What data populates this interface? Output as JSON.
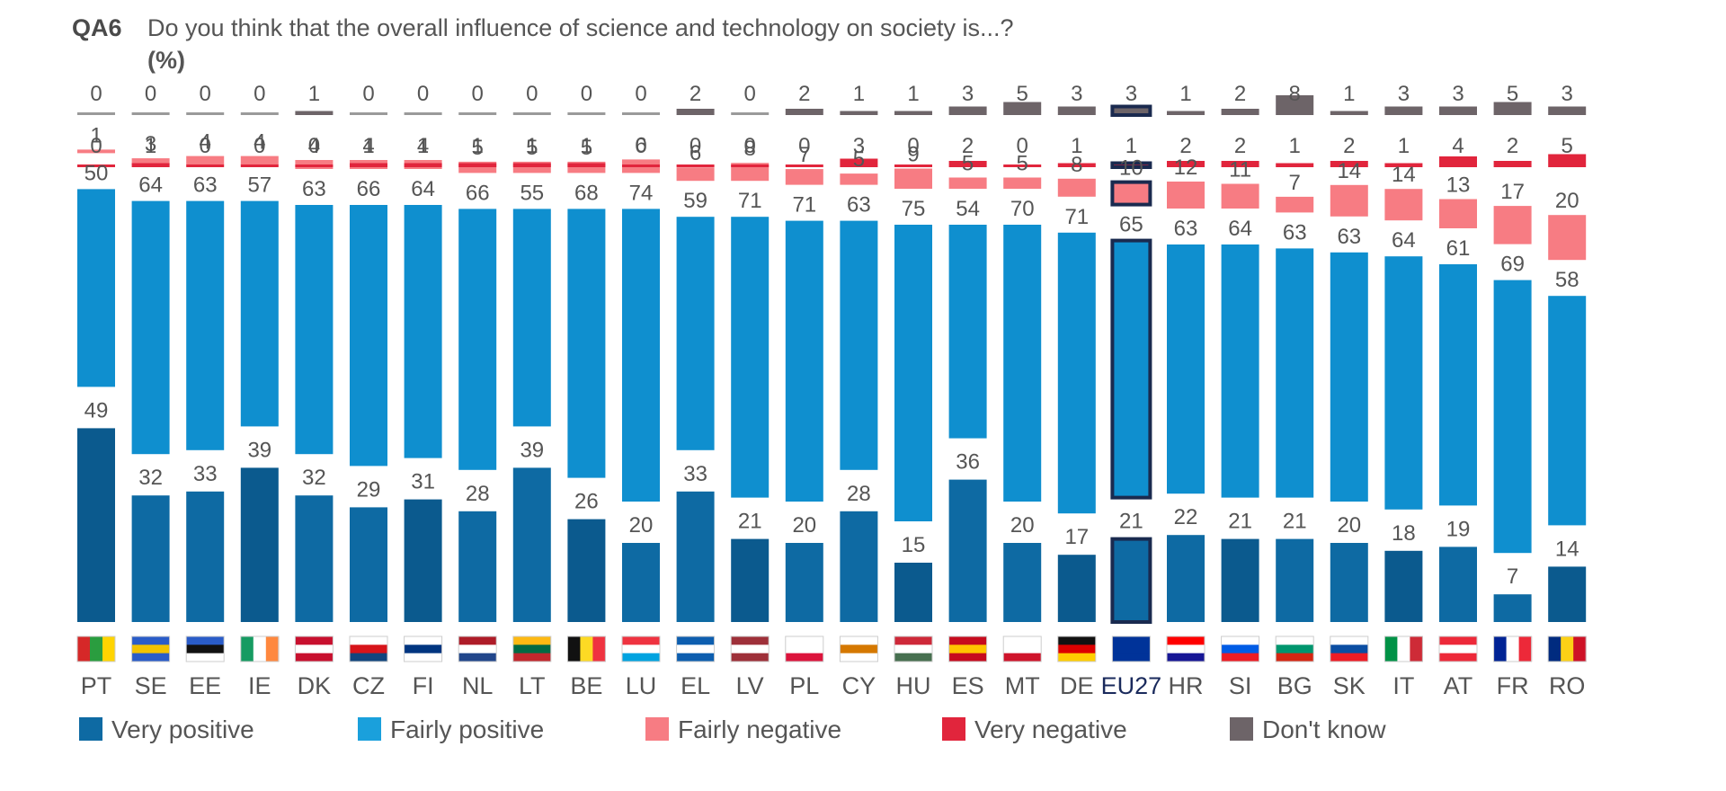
{
  "header": {
    "code": "QA6",
    "question": "Do you think that the overall influence of science and technology on society is...?",
    "unit": "(%)"
  },
  "chart_data": {
    "type": "bar",
    "stacked": true,
    "categories": [
      "PT",
      "SE",
      "EE",
      "IE",
      "DK",
      "CZ",
      "FI",
      "NL",
      "LT",
      "BE",
      "LU",
      "EL",
      "LV",
      "PL",
      "CY",
      "HU",
      "ES",
      "MT",
      "DE",
      "EU27",
      "HR",
      "SI",
      "BG",
      "SK",
      "IT",
      "AT",
      "FR",
      "RO"
    ],
    "highlight_category": "EU27",
    "series": [
      {
        "name": "Very positive",
        "color": "#0e6aa3",
        "values": [
          49,
          32,
          33,
          39,
          32,
          29,
          31,
          28,
          39,
          26,
          20,
          33,
          21,
          20,
          28,
          15,
          36,
          20,
          17,
          21,
          22,
          21,
          21,
          20,
          18,
          19,
          7,
          14
        ]
      },
      {
        "name": "Fairly positive",
        "color": "#1aa0dc",
        "values": [
          50,
          64,
          63,
          57,
          63,
          66,
          64,
          66,
          55,
          68,
          74,
          59,
          71,
          71,
          63,
          75,
          54,
          70,
          71,
          65,
          63,
          64,
          63,
          63,
          64,
          61,
          69,
          58
        ]
      },
      {
        "name": "Fairly negative",
        "color": "#f77c83",
        "values": [
          1,
          3,
          4,
          4,
          4,
          4,
          4,
          5,
          5,
          5,
          6,
          6,
          8,
          7,
          5,
          9,
          5,
          5,
          8,
          10,
          12,
          11,
          7,
          14,
          14,
          13,
          17,
          20
        ]
      },
      {
        "name": "Very negative",
        "color": "#e1253c",
        "values": [
          0,
          1,
          0,
          0,
          0,
          1,
          1,
          1,
          1,
          1,
          0,
          0,
          0,
          0,
          3,
          0,
          2,
          0,
          1,
          1,
          2,
          2,
          1,
          2,
          1,
          4,
          2,
          5
        ]
      },
      {
        "name": "Don't know",
        "color": "#6d6468",
        "values": [
          0,
          0,
          0,
          0,
          1,
          0,
          0,
          0,
          0,
          0,
          0,
          2,
          0,
          2,
          1,
          1,
          3,
          5,
          3,
          3,
          1,
          2,
          8,
          1,
          3,
          3,
          5,
          3
        ]
      }
    ],
    "legend_position": "bottom",
    "grid": false
  }
}
